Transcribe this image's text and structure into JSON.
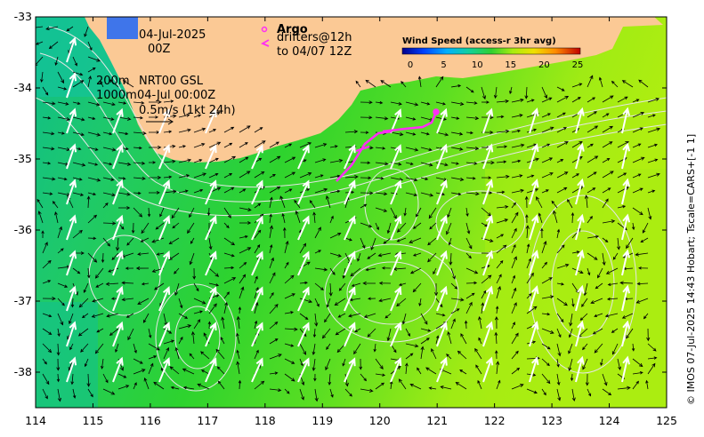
{
  "annotations": {
    "date": "04-Jul-2025",
    "hour": "00Z",
    "depth_200": "200m",
    "depth_1000": "1000m",
    "product": "NRT00 GSL",
    "ref_time": "04-Jul 00:00Z",
    "scale_vector": "0.5m/s (1kt 24h)",
    "argo_label": "Argo",
    "drifters_label": "drifters@12h",
    "drifters_to": "to 04/07 12Z"
  },
  "colorbar": {
    "title": "Wind Speed (access-r 3hr avg)",
    "ticks": [
      "0",
      "5",
      "10",
      "15",
      "20",
      "25"
    ]
  },
  "credit": "© IMOS 07-Jul-2025 14:43 Hobart; Tscale=CARS+[-1 1]",
  "axes": {
    "x_ticks": [
      "114",
      "115",
      "116",
      "117",
      "118",
      "119",
      "120",
      "121",
      "122",
      "123",
      "124",
      "125"
    ],
    "y_ticks": [
      "-33",
      "-34",
      "-35",
      "-36",
      "-37",
      "-38"
    ],
    "xlim": [
      114,
      125
    ],
    "ylim": [
      -38.5,
      -33
    ]
  },
  "colors": {
    "land": "#fbc995",
    "ocean_low": "#13c283",
    "ocean_mid": "#2ed32e",
    "ocean_high": "#a3ec12",
    "drifter": "#ff2df5",
    "wind_arrow": "#ffffff",
    "current_arrow": "#000000",
    "contour": "#e6e6e6"
  }
}
